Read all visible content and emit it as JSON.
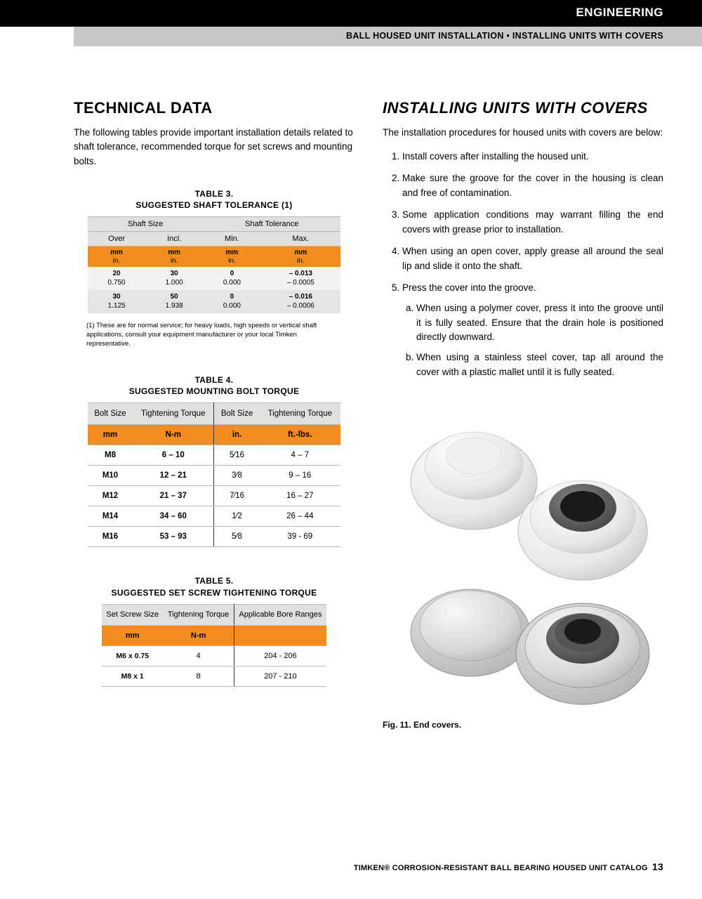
{
  "header": {
    "category": "ENGINEERING",
    "breadcrumb": "BALL HOUSED UNIT INSTALLATION • INSTALLING UNITS WITH COVERS"
  },
  "left": {
    "heading": "TECHNICAL DATA",
    "intro": "The following tables provide important installation details related to shaft tolerance, recommended torque for set screws and mounting bolts.",
    "table3": {
      "title_a": "TABLE 3.",
      "title_b": "SUGGESTED SHAFT TOLERANCE (1)",
      "group_a": "Shaft Size",
      "group_b": "Shaft Tolerance",
      "sub": [
        "Over",
        "Incl.",
        "Min.",
        "Max."
      ],
      "unit_mm": "mm",
      "unit_in": "in.",
      "rows": [
        {
          "over_mm": "20",
          "over_in": "0.750",
          "incl_mm": "30",
          "incl_in": "1.000",
          "min_mm": "0",
          "min_in": "0.000",
          "max_mm": "– 0.013",
          "max_in": "– 0.0005"
        },
        {
          "over_mm": "30",
          "over_in": "1.125",
          "incl_mm": "50",
          "incl_in": "1.938",
          "min_mm": "0",
          "min_in": "0.000",
          "max_mm": "– 0.016",
          "max_in": "– 0.0006"
        }
      ],
      "footnote": "(1) These are for normal service; for heavy loads, high speeds or vertical shaft applications, consult your equipment manufacturer or your local Timken representative."
    },
    "table4": {
      "title_a": "TABLE 4.",
      "title_b": "SUGGESTED MOUNTING BOLT TORQUE",
      "headers": [
        "Bolt Size",
        "Tightening Torque",
        "Bolt Size",
        "Tightening Torque"
      ],
      "units": [
        "mm",
        "N-m",
        "in.",
        "ft.-lbs."
      ],
      "rows": [
        [
          "M8",
          "6 – 10",
          "5⁄16",
          "4 – 7"
        ],
        [
          "M10",
          "12 – 21",
          "3⁄8",
          "9 – 16"
        ],
        [
          "M12",
          "21 – 37",
          "7⁄16",
          "16 – 27"
        ],
        [
          "M14",
          "34 – 60",
          "1⁄2",
          "26 – 44"
        ],
        [
          "M16",
          "53 – 93",
          "5⁄8",
          "39 - 69"
        ]
      ]
    },
    "table5": {
      "title_a": "TABLE 5.",
      "title_b": "SUGGESTED SET SCREW TIGHTENING TORQUE",
      "headers": [
        "Set Screw Size",
        "Tightening Torque",
        "Applicable Bore Ranges"
      ],
      "units": [
        "mm",
        "N-m",
        ""
      ],
      "rows": [
        [
          "M6 x 0.75",
          "4",
          "204 - 206"
        ],
        [
          "M8 x 1",
          "8",
          "207 - 210"
        ]
      ]
    }
  },
  "right": {
    "heading": "INSTALLING UNITS WITH COVERS",
    "intro": "The installation procedures for housed units with covers are below:",
    "steps": [
      "Install covers after installing the housed unit.",
      "Make sure the groove for the cover in the housing is clean and free of contamination.",
      "Some application conditions may warrant filling the end covers with grease prior to installation.",
      "When using an open cover, apply grease all around the seal lip and slide it onto the shaft.",
      "Press the cover into the groove."
    ],
    "substeps": [
      "When using a polymer cover, press it into the groove until it is fully seated. Ensure that the drain hole is positioned directly downward.",
      "When using a stainless steel cover, tap all around the cover with a plastic mallet until it is fully seated."
    ],
    "figure_caption": "Fig. 11. End covers."
  },
  "footer": {
    "text": "TIMKEN® CORROSION-RESISTANT BALL BEARING HOUSED UNIT CATALOG",
    "page": "13"
  },
  "colors": {
    "orange": "#f28c1f",
    "gray_header": "#e0e0e0",
    "gray_bar": "#c8c8c8"
  }
}
